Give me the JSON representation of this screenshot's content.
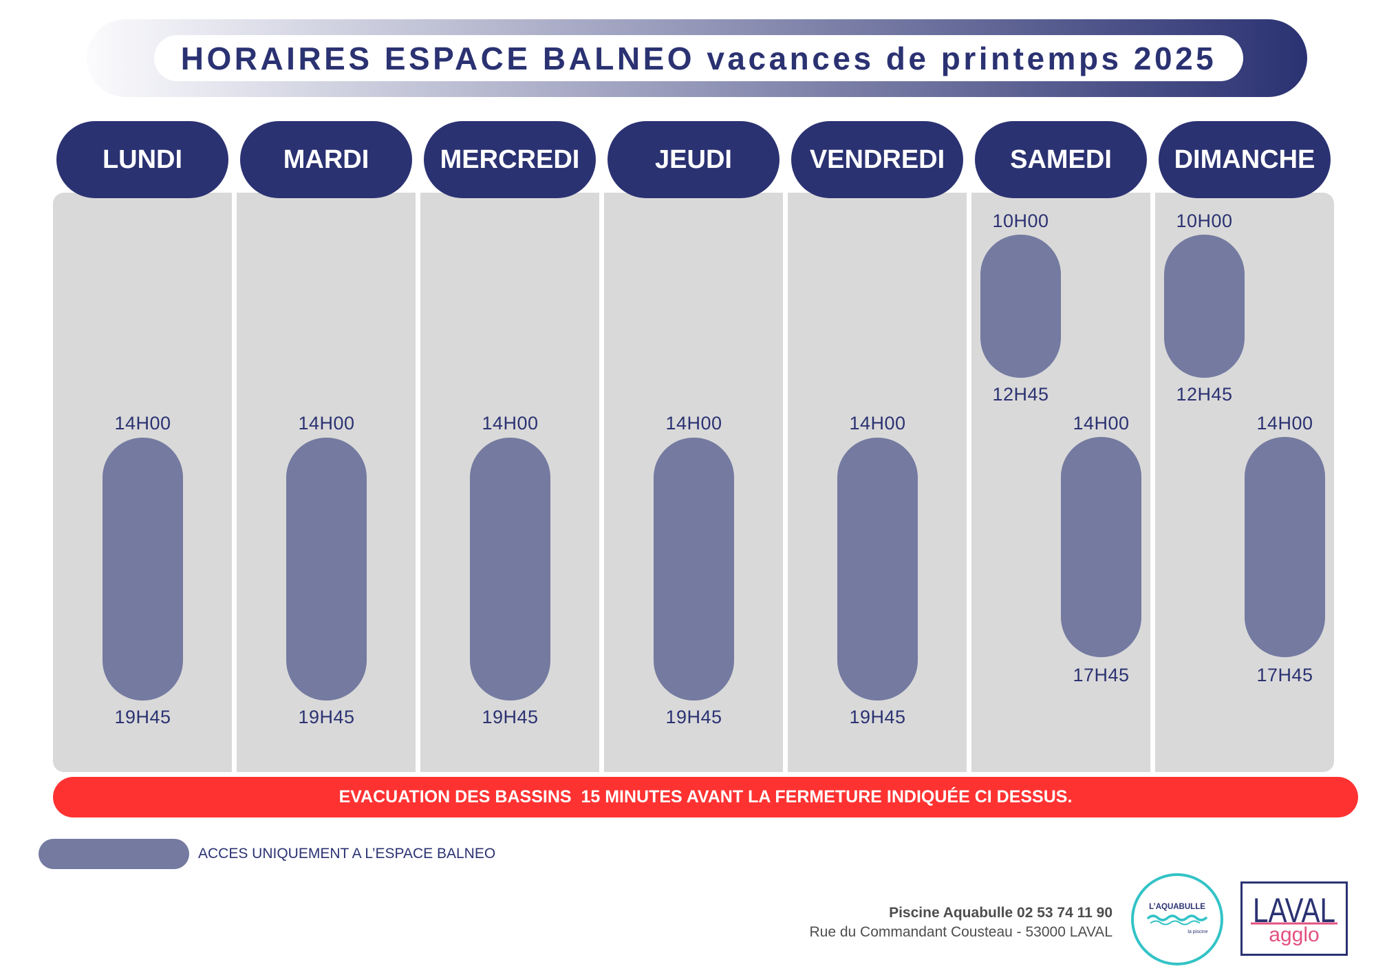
{
  "title": "HORAIRES ESPACE BALNEO vacances de printemps 2025",
  "days": [
    {
      "name": "LUNDI",
      "slots": [
        {
          "start": "14H00",
          "end": "19H45"
        }
      ]
    },
    {
      "name": "MARDI",
      "slots": [
        {
          "start": "14H00",
          "end": "19H45"
        }
      ]
    },
    {
      "name": "MERCREDI",
      "slots": [
        {
          "start": "14H00",
          "end": "19H45"
        }
      ]
    },
    {
      "name": "JEUDI",
      "slots": [
        {
          "start": "14H00",
          "end": "19H45"
        }
      ]
    },
    {
      "name": "VENDREDI",
      "slots": [
        {
          "start": "14H00",
          "end": "19H45"
        }
      ]
    },
    {
      "name": "SAMEDI",
      "slots": [
        {
          "start": "10H00",
          "end": "12H45"
        },
        {
          "start": "14H00",
          "end": "17H45"
        }
      ]
    },
    {
      "name": "DIMANCHE",
      "slots": [
        {
          "start": "10H00",
          "end": "12H45"
        },
        {
          "start": "14H00",
          "end": "17H45"
        }
      ]
    }
  ],
  "notice": "EVACUATION DES BASSINS  15 MINUTES AVANT LA FERMETURE INDIQUÉE CI DESSUS.",
  "legend": {
    "label": "ACCES UNIQUEMENT A L’ESPACE BALNEO"
  },
  "footer": {
    "contact": "Piscine Aquabulle 02 53 74 11 90",
    "address": "Rue du Commandant Cousteau - 53000 LAVAL"
  },
  "logos": {
    "aquabulle": {
      "name": "L’AQUABULLE",
      "tagline": "la piscine"
    },
    "laval_agglo": {
      "top": "LAVAL",
      "bottom": "agglo"
    }
  },
  "colors": {
    "navy": "#2b3272",
    "slot": "#747aa0",
    "panel": "#d9d9d9",
    "alert": "#ff3232",
    "teal": "#33c3c6",
    "pink": "#e2517f",
    "banner_start": "#fbfbfd",
    "footer_text": "#4d4d4d"
  }
}
